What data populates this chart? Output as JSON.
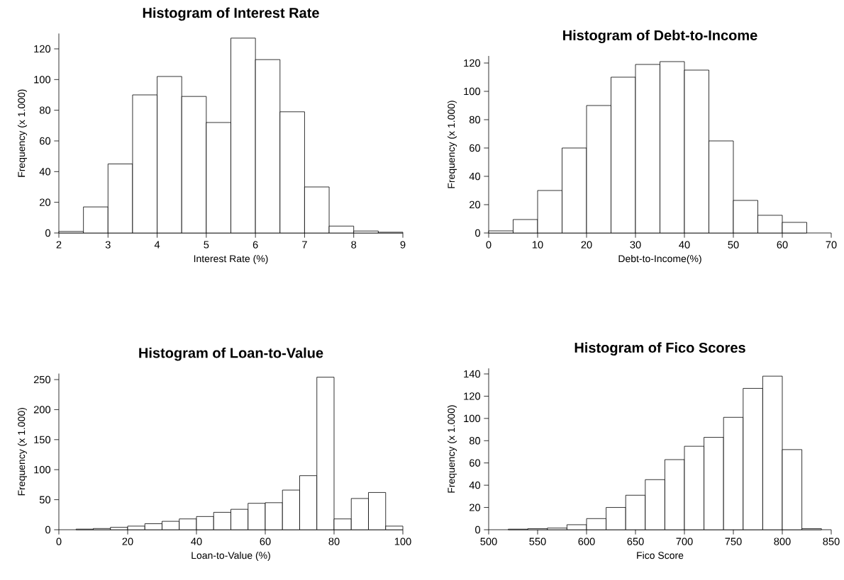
{
  "chart_data": [
    {
      "type": "histogram",
      "title": "Histogram of Interest Rate",
      "xlabel": "Interest Rate (%)",
      "ylabel": "Frequency (x 1.000)",
      "color": "#ffffff",
      "bins": [
        2,
        2.5,
        3,
        3.5,
        4,
        4.5,
        5,
        5.5,
        6,
        6.5,
        7,
        7.5,
        8,
        8.5,
        9
      ],
      "values": [
        1,
        17,
        45,
        90,
        102,
        89,
        72,
        127,
        113,
        79,
        30,
        4.5,
        1.3,
        0.5
      ],
      "xlim": [
        2,
        9
      ],
      "ylim": [
        0,
        130
      ],
      "xticks": [
        2,
        3,
        4,
        5,
        6,
        7,
        8,
        9
      ],
      "yticks": [
        0,
        20,
        40,
        60,
        80,
        100,
        120
      ]
    },
    {
      "type": "histogram",
      "title": "Histogram of Debt-to-Income",
      "xlabel": "Debt-to-Income(%)",
      "ylabel": "Frequency (x 1.000)",
      "color": "#ffffff",
      "bins": [
        0,
        5,
        10,
        15,
        20,
        25,
        30,
        35,
        40,
        45,
        50,
        55,
        60,
        65
      ],
      "values": [
        1.5,
        9.5,
        30,
        60,
        90,
        110,
        119,
        121,
        115,
        65,
        23,
        12.5,
        7.5
      ],
      "xlim": [
        0,
        70
      ],
      "ylim": [
        0,
        125
      ],
      "xticks": [
        0,
        10,
        20,
        30,
        40,
        50,
        60,
        70
      ],
      "yticks": [
        0,
        20,
        40,
        60,
        80,
        100,
        120
      ]
    },
    {
      "type": "histogram",
      "title": "Histogram of Loan-to-Value",
      "xlabel": "Loan-to-Value (%)",
      "ylabel": "Frequency (x 1.000)",
      "color": "#ffffff",
      "bins": [
        5,
        10,
        15,
        20,
        25,
        30,
        35,
        40,
        45,
        50,
        55,
        60,
        65,
        70,
        75,
        80,
        85,
        90,
        95,
        100
      ],
      "values": [
        1,
        2,
        4,
        6,
        10,
        14,
        18,
        22,
        29,
        34,
        44,
        45,
        66,
        90,
        254,
        18,
        52,
        62,
        6
      ],
      "xlim": [
        0,
        100
      ],
      "ylim": [
        0,
        260
      ],
      "xticks": [
        0,
        20,
        40,
        60,
        80,
        100
      ],
      "yticks": [
        0,
        50,
        100,
        150,
        200,
        250
      ]
    },
    {
      "type": "histogram",
      "title": "Histogram of Fico Scores",
      "xlabel": "Fico Score",
      "ylabel": "Frequency (x 1.000)",
      "color": "#ffffff",
      "bins": [
        520,
        540,
        560,
        580,
        600,
        620,
        640,
        660,
        680,
        700,
        720,
        740,
        760,
        780,
        800,
        820,
        840
      ],
      "values": [
        0.5,
        1,
        1.5,
        4.5,
        10,
        20,
        31,
        45,
        63,
        75,
        83,
        101,
        127,
        138,
        72,
        1
      ],
      "xlim": [
        500,
        850
      ],
      "ylim": [
        0,
        145
      ],
      "xticks": [
        500,
        550,
        600,
        650,
        700,
        750,
        800,
        850
      ],
      "yticks": [
        0,
        20,
        40,
        60,
        80,
        100,
        120,
        140
      ]
    }
  ]
}
